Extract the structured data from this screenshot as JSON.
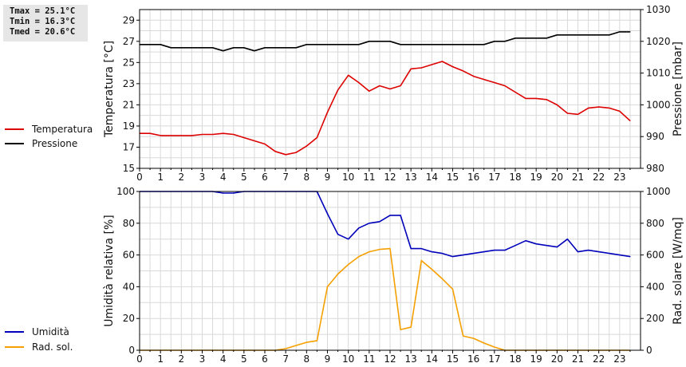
{
  "stats": {
    "tmax": "Tmax = 25.1°C",
    "tmin": "Tmin = 16.3°C",
    "tmed": "Tmed = 20.6°C"
  },
  "legend_top": [
    {
      "label": "Temperatura",
      "color": "#dd0000"
    },
    {
      "label": "Pressione",
      "color": "#000000"
    }
  ],
  "legend_bottom": [
    {
      "label": "Umidità",
      "color": "#0000bb"
    },
    {
      "label": "Rad. sol.",
      "color": "#f5a000"
    }
  ],
  "chart_data": [
    {
      "type": "line",
      "xlim": [
        0,
        24
      ],
      "x_ticks": [
        "0",
        "1",
        "2",
        "3",
        "4",
        "5",
        "6",
        "7",
        "8",
        "9",
        "10",
        "11",
        "12",
        "13",
        "14",
        "15",
        "16",
        "17",
        "18",
        "19",
        "20",
        "21",
        "22",
        "23"
      ],
      "ylabel": "Temperatura [°C]",
      "ylim": [
        15,
        30
      ],
      "y_ticks": [
        "15",
        "17",
        "19",
        "21",
        "23",
        "25",
        "27",
        "29"
      ],
      "y2label": "Pressione [mbar]",
      "y2lim": [
        980,
        1030
      ],
      "y2_ticks": [
        "980",
        "990",
        "1000",
        "1010",
        "1020",
        "1030"
      ],
      "grid": true,
      "series": [
        {
          "name": "Temperatura",
          "color": "#dd0000",
          "axis": "left",
          "x": [
            0,
            0.5,
            1,
            1.5,
            2,
            2.5,
            3,
            3.5,
            4,
            4.5,
            5,
            5.5,
            6,
            6.5,
            7,
            7.5,
            8,
            8.5,
            9,
            9.5,
            10,
            10.5,
            11,
            11.5,
            12,
            12.5,
            13,
            13.5,
            14,
            14.5,
            15,
            15.5,
            16,
            16.5,
            17,
            17.5,
            18,
            18.5,
            19,
            19.5,
            20,
            20.5,
            21,
            21.5,
            22,
            22.5,
            23,
            23.5
          ],
          "y": [
            18.3,
            18.3,
            18.1,
            18.1,
            18.1,
            18.1,
            18.2,
            18.2,
            18.3,
            18.2,
            17.9,
            17.6,
            17.3,
            16.6,
            16.3,
            16.5,
            17.1,
            17.9,
            20.3,
            22.4,
            23.8,
            23.1,
            22.3,
            22.8,
            22.5,
            22.8,
            24.4,
            24.5,
            24.8,
            25.1,
            24.6,
            24.2,
            23.7,
            23.4,
            23.1,
            22.8,
            22.2,
            21.6,
            21.6,
            21.5,
            21.0,
            20.2,
            20.1,
            20.7,
            20.8,
            20.7,
            20.4,
            19.5
          ]
        },
        {
          "name": "Pressione",
          "color": "#000000",
          "axis": "right",
          "x": [
            0,
            0.5,
            1,
            1.5,
            2,
            2.5,
            3,
            3.5,
            4,
            4.5,
            5,
            5.5,
            6,
            6.5,
            7,
            7.5,
            8,
            8.5,
            9,
            9.5,
            10,
            10.5,
            11,
            11.5,
            12,
            12.5,
            13,
            13.5,
            14,
            14.5,
            15,
            15.5,
            16,
            16.5,
            17,
            17.5,
            18,
            18.5,
            19,
            19.5,
            20,
            20.5,
            21,
            21.5,
            22,
            22.5,
            23,
            23.5
          ],
          "y": [
            1019,
            1019,
            1019,
            1018,
            1018,
            1018,
            1018,
            1018,
            1017,
            1018,
            1018,
            1017,
            1018,
            1018,
            1018,
            1018,
            1019,
            1019,
            1019,
            1019,
            1019,
            1019,
            1020,
            1020,
            1020,
            1019,
            1019,
            1019,
            1019,
            1019,
            1019,
            1019,
            1019,
            1019,
            1020,
            1020,
            1021,
            1021,
            1021,
            1021,
            1022,
            1022,
            1022,
            1022,
            1022,
            1022,
            1023,
            1023
          ]
        }
      ]
    },
    {
      "type": "line",
      "xlim": [
        0,
        24
      ],
      "x_ticks": [
        "0",
        "1",
        "2",
        "3",
        "4",
        "5",
        "6",
        "7",
        "8",
        "9",
        "10",
        "11",
        "12",
        "13",
        "14",
        "15",
        "16",
        "17",
        "18",
        "19",
        "20",
        "21",
        "22",
        "23"
      ],
      "ylabel": "Umidità relativa [%]",
      "ylim": [
        0,
        100
      ],
      "y_ticks": [
        "0",
        "20",
        "40",
        "60",
        "80",
        "100"
      ],
      "y2label": "Rad. solare [W/mq]",
      "y2lim": [
        0,
        1000
      ],
      "y2_ticks": [
        "0",
        "200",
        "400",
        "600",
        "800",
        "1000"
      ],
      "grid": true,
      "series": [
        {
          "name": "Umidità",
          "color": "#0000bb",
          "axis": "left",
          "x": [
            0,
            0.5,
            1,
            1.5,
            2,
            2.5,
            3,
            3.5,
            4,
            4.5,
            5,
            5.5,
            6,
            6.5,
            7,
            7.5,
            8,
            8.5,
            9,
            9.5,
            10,
            10.5,
            11,
            11.5,
            12,
            12.5,
            13,
            13.5,
            14,
            14.5,
            15,
            15.5,
            16,
            16.5,
            17,
            17.5,
            18,
            18.5,
            19,
            19.5,
            20,
            20.5,
            21,
            21.5,
            22,
            22.5,
            23,
            23.5
          ],
          "y": [
            100,
            100,
            100,
            100,
            100,
            100,
            100,
            100,
            99,
            99,
            100,
            100,
            100,
            100,
            100,
            100,
            100,
            100,
            86,
            73,
            70,
            77,
            80,
            81,
            85,
            85,
            64,
            64,
            62,
            61,
            59,
            60,
            61,
            62,
            63,
            63,
            66,
            69,
            67,
            66,
            65,
            70,
            62,
            63,
            62,
            61,
            60,
            59
          ]
        },
        {
          "name": "Rad. sol.",
          "color": "#f5a000",
          "axis": "right",
          "x": [
            0,
            0.5,
            1,
            1.5,
            2,
            2.5,
            3,
            3.5,
            4,
            4.5,
            5,
            5.5,
            6,
            6.5,
            7,
            7.5,
            8,
            8.5,
            9,
            9.5,
            10,
            10.5,
            11,
            11.5,
            12,
            12.5,
            13,
            13.5,
            14,
            14.5,
            15,
            15.5,
            16,
            16.5,
            17,
            17.5,
            18,
            18.5,
            19,
            19.5,
            20,
            20.5,
            21,
            21.5,
            22,
            22.5,
            23,
            23.5
          ],
          "y": [
            0,
            0,
            0,
            0,
            0,
            0,
            0,
            0,
            0,
            0,
            0,
            0,
            0,
            0,
            10,
            30,
            50,
            60,
            400,
            480,
            540,
            590,
            620,
            635,
            640,
            130,
            145,
            565,
            510,
            450,
            385,
            90,
            75,
            45,
            20,
            0,
            0,
            0,
            0,
            0,
            0,
            0,
            0,
            0,
            0,
            0,
            0,
            0
          ]
        }
      ]
    }
  ]
}
